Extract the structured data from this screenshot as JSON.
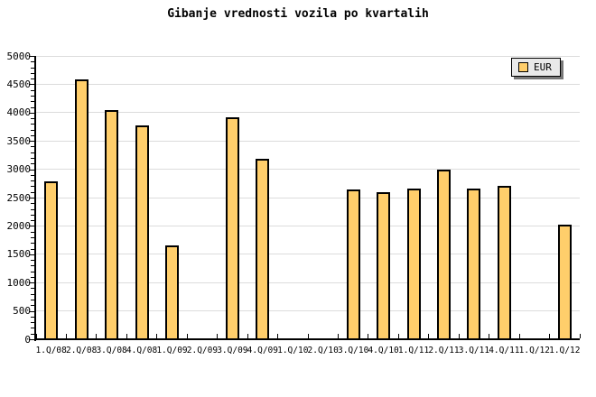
{
  "title": "Gibanje vrednosti vozila po kvartalih",
  "legend": {
    "label": "EUR"
  },
  "colors": {
    "background": "#ffffff",
    "bar_fill": "#ffce6b",
    "bar_border": "#000000",
    "gridline": "#dcdcdc",
    "axis": "#000000",
    "text": "#000000",
    "legend_bg": "#e9e9e9",
    "legend_shadow": "#777777"
  },
  "chart_data": {
    "type": "bar",
    "title": "Gibanje vrednosti vozila po kvartalih",
    "categories": [
      "1.Q/08",
      "2.Q/08",
      "3.Q/08",
      "4.Q/08",
      "1.Q/09",
      "2.Q/09",
      "3.Q/09",
      "4.Q/09",
      "1.Q/10",
      "2.Q/10",
      "3.Q/10",
      "4.Q/10",
      "1.Q/11",
      "2.Q/11",
      "3.Q/11",
      "4.Q/11",
      "1.Q/12",
      "1.Q/12"
    ],
    "series": [
      {
        "name": "EUR",
        "values": [
          2790,
          4580,
          4050,
          3770,
          1660,
          null,
          3920,
          3190,
          null,
          null,
          2650,
          2590,
          2660,
          3000,
          2660,
          2710,
          null,
          2020
        ]
      }
    ],
    "xlabel": "",
    "ylabel": "",
    "ylim": [
      0,
      5000
    ],
    "ytick_step": 500,
    "ytick_minor_step": 100,
    "ytick_labels": [
      "0",
      "500",
      "1000",
      "1500",
      "2000",
      "2500",
      "3000",
      "3500",
      "4000",
      "4500",
      "5000"
    ],
    "grid": true,
    "legend_position": "top-right"
  }
}
